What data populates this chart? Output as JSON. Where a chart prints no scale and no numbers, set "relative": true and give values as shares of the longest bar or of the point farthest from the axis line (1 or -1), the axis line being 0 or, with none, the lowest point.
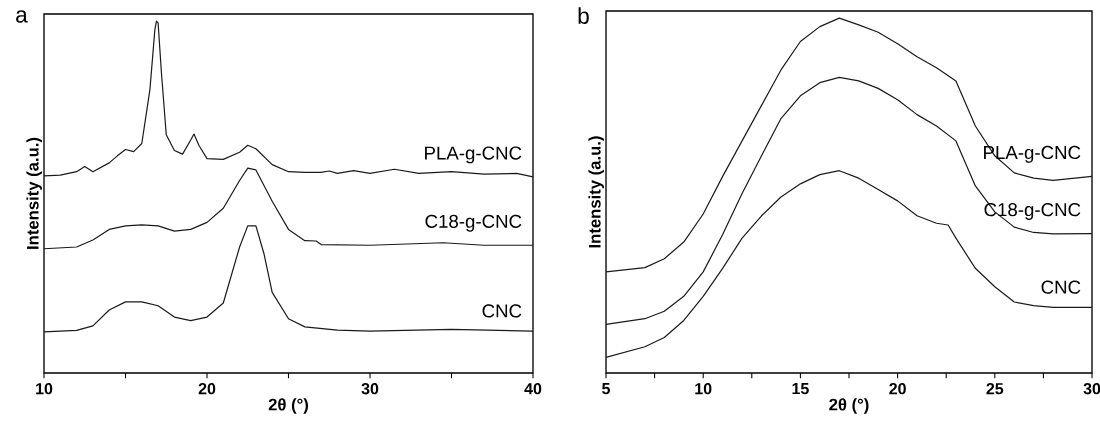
{
  "chart_data": [
    {
      "type": "line",
      "xlabel": "2θ (°)",
      "ylabel": "Intensity (a.u.)",
      "annotations": [
        "a"
      ],
      "relative": true,
      "tick_labels": "x",
      "grid": false,
      "xlim": [
        10,
        40
      ],
      "xticks": [
        10,
        {
          "value": 15,
          "label": null
        },
        20,
        {
          "value": 25,
          "label": null
        },
        30,
        {
          "value": 35,
          "label": null
        },
        40
      ],
      "x": [
        10,
        11,
        12,
        12.5,
        13,
        14,
        14.5,
        15,
        15.5,
        16,
        16.5,
        16.8,
        16.9,
        17,
        17.2,
        17.5,
        18,
        18.5,
        19,
        19.2,
        19.5,
        20,
        21,
        22,
        22.5,
        23,
        24,
        25,
        26,
        27,
        27.5,
        28,
        29,
        30,
        31.5,
        33,
        35,
        37,
        39,
        40
      ],
      "series": [
        {
          "name": "PLA-g-CNC",
          "color": "#1a1a1a",
          "values": [
            0.56,
            0.562,
            0.572,
            0.587,
            0.572,
            0.597,
            0.617,
            0.635,
            0.629,
            0.652,
            0.806,
            0.975,
            1.0,
            0.995,
            0.856,
            0.677,
            0.632,
            0.622,
            0.662,
            0.679,
            0.647,
            0.609,
            0.607,
            0.627,
            0.647,
            0.637,
            0.592,
            0.572,
            0.57,
            0.57,
            0.574,
            0.567,
            0.575,
            0.567,
            0.579,
            0.567,
            0.572,
            0.565,
            0.567,
            0.557
          ]
        },
        {
          "name": "C18-g-CNC",
          "color": "#1a1a1a",
          "x": [
            10,
            12,
            13,
            14,
            15,
            16,
            17,
            18,
            19,
            20,
            21,
            22,
            22.5,
            23,
            24,
            25,
            26,
            26.7,
            27,
            30,
            34.5,
            37,
            40
          ],
          "values": [
            0.353,
            0.358,
            0.378,
            0.408,
            0.418,
            0.421,
            0.418,
            0.403,
            0.408,
            0.428,
            0.468,
            0.547,
            0.582,
            0.577,
            0.488,
            0.408,
            0.376,
            0.375,
            0.365,
            0.363,
            0.37,
            0.363,
            0.363
          ]
        },
        {
          "name": "CNC",
          "color": "#1a1a1a",
          "x": [
            10,
            12,
            13,
            14,
            15,
            16,
            17,
            18,
            19,
            20,
            21,
            22,
            22.5,
            23,
            23.5,
            24,
            25,
            26,
            28,
            30,
            35,
            40
          ],
          "values": [
            0.117,
            0.121,
            0.134,
            0.179,
            0.202,
            0.202,
            0.191,
            0.159,
            0.149,
            0.159,
            0.199,
            0.358,
            0.418,
            0.418,
            0.338,
            0.229,
            0.154,
            0.131,
            0.122,
            0.119,
            0.124,
            0.119
          ]
        }
      ]
    },
    {
      "type": "line",
      "xlabel": "2θ (°)",
      "ylabel": "Intensity (a.u.)",
      "annotations": [
        "b"
      ],
      "relative": true,
      "tick_labels": "x",
      "grid": false,
      "xlim": [
        5,
        30
      ],
      "xticks": [
        5,
        {
          "value": 7.5,
          "label": null
        },
        10,
        {
          "value": 12.5,
          "label": null
        },
        15,
        {
          "value": 17.5,
          "label": null
        },
        20,
        {
          "value": 22.5,
          "label": null
        },
        25,
        {
          "value": 27.5,
          "label": null
        },
        30
      ],
      "x": [
        5,
        7,
        8,
        9,
        10,
        11,
        12,
        13,
        14,
        15,
        16,
        17,
        18,
        19,
        20,
        21,
        22,
        23,
        24,
        25,
        26,
        27,
        28,
        30
      ],
      "series": [
        {
          "name": "PLA-g-CNC",
          "color": "#1a1a1a",
          "values": [
            0.285,
            0.297,
            0.322,
            0.369,
            0.448,
            0.554,
            0.654,
            0.754,
            0.854,
            0.934,
            0.976,
            1.0,
            0.981,
            0.96,
            0.928,
            0.891,
            0.86,
            0.823,
            0.696,
            0.612,
            0.564,
            0.549,
            0.543,
            0.554
          ]
        },
        {
          "name": "C18-g-CNC",
          "color": "#1a1a1a",
          "values": [
            0.137,
            0.153,
            0.174,
            0.216,
            0.285,
            0.39,
            0.506,
            0.612,
            0.717,
            0.781,
            0.818,
            0.833,
            0.823,
            0.802,
            0.77,
            0.728,
            0.696,
            0.654,
            0.527,
            0.454,
            0.411,
            0.396,
            0.392,
            0.393
          ]
        },
        {
          "name": "CNC",
          "color": "#1a1a1a",
          "x": [
            5,
            7,
            8,
            9,
            10,
            11,
            12,
            13,
            14,
            15,
            16,
            17,
            18,
            19,
            20,
            21,
            22,
            22.6,
            23,
            24,
            25,
            26,
            27,
            28,
            30
          ],
          "values": [
            0.044,
            0.074,
            0.1,
            0.148,
            0.216,
            0.295,
            0.38,
            0.443,
            0.496,
            0.533,
            0.559,
            0.57,
            0.549,
            0.517,
            0.485,
            0.443,
            0.422,
            0.417,
            0.38,
            0.295,
            0.243,
            0.2,
            0.19,
            0.185,
            0.185
          ]
        }
      ]
    }
  ]
}
